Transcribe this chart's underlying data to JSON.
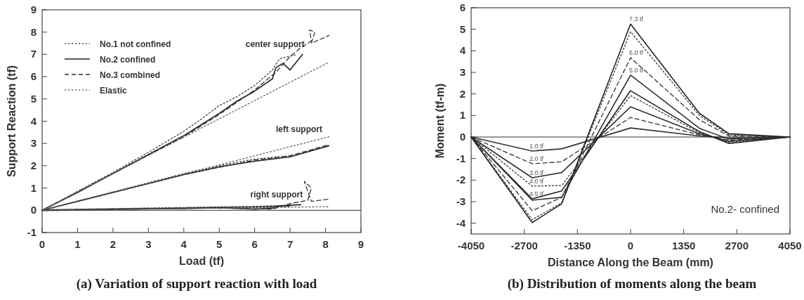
{
  "chart_data": [
    {
      "type": "line",
      "title": "(a)  Variation of support reaction with load",
      "xlabel": "Load (tf)",
      "ylabel": "Support Reaction (tf)",
      "xlim": [
        0,
        9
      ],
      "ylim": [
        -1,
        9
      ],
      "xticks": [
        0,
        1,
        2,
        3,
        4,
        5,
        6,
        7,
        8,
        9
      ],
      "yticks": [
        -1,
        0,
        1,
        2,
        3,
        4,
        5,
        6,
        7,
        8,
        9
      ],
      "legend": "top left",
      "ref_lines": [
        {
          "axis": "y",
          "value": 0,
          "color": "#333333"
        }
      ],
      "annotations": [
        {
          "text": "center support",
          "x": 7.35,
          "y": 7.0
        },
        {
          "text": "left support",
          "x": 7.85,
          "y": 3.2
        },
        {
          "text": "right support",
          "x": 7.3,
          "y": 0.25
        }
      ],
      "series": [
        {
          "name": "No.1 not confined",
          "color": "#444444",
          "line_style": "dotted",
          "x": [
            0,
            2,
            3,
            4,
            4.5,
            5,
            5.5,
            6,
            6.5,
            6.7,
            7.2
          ],
          "values": [
            0,
            1.7,
            2.6,
            3.55,
            4.1,
            4.7,
            5.1,
            5.6,
            6.3,
            6.8,
            7.0
          ]
        },
        {
          "color": "#444444",
          "line_style": "dotted",
          "x": [
            0,
            4,
            5,
            6,
            7
          ],
          "values": [
            0,
            1.65,
            2.0,
            2.3,
            2.45
          ]
        },
        {
          "color": "#444444",
          "line_style": "dotted",
          "x": [
            0,
            4,
            6,
            7
          ],
          "values": [
            0,
            0.1,
            0.15,
            0.2
          ]
        },
        {
          "name": "No.2 confined",
          "color": "#222222",
          "line_style": "solid",
          "x": [
            0,
            1,
            2,
            3,
            4,
            4.5,
            5,
            5.5,
            6,
            6.5,
            6.6,
            6.8,
            7.0,
            7.35
          ],
          "values": [
            0,
            0.8,
            1.65,
            2.5,
            3.35,
            3.85,
            4.35,
            4.9,
            5.35,
            5.9,
            6.4,
            6.6,
            6.3,
            7.0
          ]
        },
        {
          "color": "#222222",
          "line_style": "solid",
          "x": [
            0,
            1,
            2,
            3,
            4,
            5,
            6,
            7,
            8.1
          ],
          "values": [
            0,
            0.4,
            0.8,
            1.2,
            1.6,
            1.95,
            2.2,
            2.4,
            2.9
          ]
        },
        {
          "color": "#222222",
          "line_style": "solid",
          "x": [
            0,
            2,
            4,
            5,
            6,
            6.5,
            6.7,
            7.3
          ],
          "values": [
            0,
            0.05,
            0.08,
            0.12,
            0.05,
            0.1,
            0.2,
            0.25
          ]
        },
        {
          "name": "No.3 combined",
          "color": "#333333",
          "line_style": "dashed",
          "x": [
            0,
            2,
            4,
            5,
            6,
            6.6,
            7,
            7.3,
            7.6,
            7.55,
            7.7,
            7.6,
            8.1
          ],
          "values": [
            0,
            1.65,
            3.3,
            4.3,
            5.4,
            6.2,
            6.9,
            7.3,
            7.6,
            8.1,
            8.0,
            7.5,
            7.85
          ]
        },
        {
          "color": "#333333",
          "line_style": "dashed",
          "x": [
            0,
            4,
            6,
            7,
            8.1
          ],
          "values": [
            0,
            1.6,
            2.25,
            2.45,
            2.95
          ]
        },
        {
          "color": "#333333",
          "line_style": "dashed",
          "x": [
            0,
            5,
            6.5,
            7,
            7.5,
            7.6,
            7.4,
            7.6,
            8.1
          ],
          "values": [
            0,
            0.1,
            0.05,
            0.3,
            0.45,
            1.0,
            1.3,
            0.4,
            0.5
          ]
        },
        {
          "name": "Elastic",
          "color": "#666666",
          "line_style": "dotted",
          "x": [
            0,
            8.1
          ],
          "values": [
            0,
            6.65
          ]
        },
        {
          "color": "#666666",
          "line_style": "dotted",
          "x": [
            0,
            7.85,
            8.1
          ],
          "values": [
            0,
            3.2,
            3.3
          ]
        },
        {
          "color": "#666666",
          "line_style": "dotted",
          "x": [
            0,
            8.1
          ],
          "values": [
            0,
            0.16
          ]
        }
      ]
    },
    {
      "type": "line",
      "title": "(b) Distribution of moments along the beam",
      "xlabel": "Distance Along the Beam (mm)",
      "ylabel": "Moment (tf-m)",
      "xlim": [
        -4050,
        4050
      ],
      "ylim": [
        -4.5,
        6
      ],
      "xticks": [
        -4050,
        -2700,
        -1350,
        0,
        1350,
        2700,
        4050
      ],
      "yticks": [
        -4,
        -3,
        -2,
        -1,
        0,
        1,
        2,
        3,
        4,
        5,
        6
      ],
      "ref_lines": [
        {
          "axis": "y",
          "value": 0,
          "color": "#333333"
        }
      ],
      "annotations": [
        "No.2- confined"
      ],
      "x": [
        -4050,
        -2500,
        -1750,
        0,
        1750,
        2500,
        4050
      ],
      "series": [
        {
          "name": "1.0 tf",
          "color": "#333333",
          "line_style": "solid",
          "values": [
            0,
            -0.65,
            -0.55,
            0.42,
            0.05,
            -0.05,
            0
          ]
        },
        {
          "name": "2.0 tf",
          "color": "#333333",
          "line_style": "dashed",
          "values": [
            0,
            -1.24,
            -1.15,
            0.91,
            0.1,
            -0.15,
            0
          ]
        },
        {
          "name": "3.0 tf",
          "color": "#333333",
          "line_style": "solid",
          "values": [
            0,
            -1.89,
            -1.65,
            1.4,
            0.15,
            -0.2,
            0
          ]
        },
        {
          "name": "4.0 tf",
          "color": "#333333",
          "line_style": "dotted",
          "values": [
            0,
            -2.28,
            -2.25,
            1.92,
            0.2,
            -0.25,
            0
          ]
        },
        {
          "name": "4.5 tf",
          "color": "#222222",
          "line_style": "solid",
          "values": [
            0,
            -2.87,
            -2.5,
            2.15,
            0.25,
            -0.3,
            0
          ]
        },
        {
          "name": "5.0 tf",
          "color": "#333333",
          "line_style": "solid",
          "values": [
            0,
            -2.93,
            -2.8,
            2.87,
            0.4,
            -0.1,
            0
          ]
        },
        {
          "name": "6.0 tf",
          "color": "#333333",
          "line_style": "dashed",
          "values": [
            0,
            -3.42,
            -2.8,
            3.68,
            0.8,
            0.05,
            0
          ]
        },
        {
          "color": "#333333",
          "line_style": "dotted",
          "values": [
            0,
            -3.84,
            -3.05,
            4.89,
            1.0,
            0.1,
            0
          ]
        },
        {
          "name": "7.3 tf",
          "color": "#222222",
          "line_style": "solid",
          "values": [
            0,
            -3.97,
            -3.1,
            5.24,
            1.1,
            0.15,
            0
          ]
        }
      ]
    }
  ]
}
